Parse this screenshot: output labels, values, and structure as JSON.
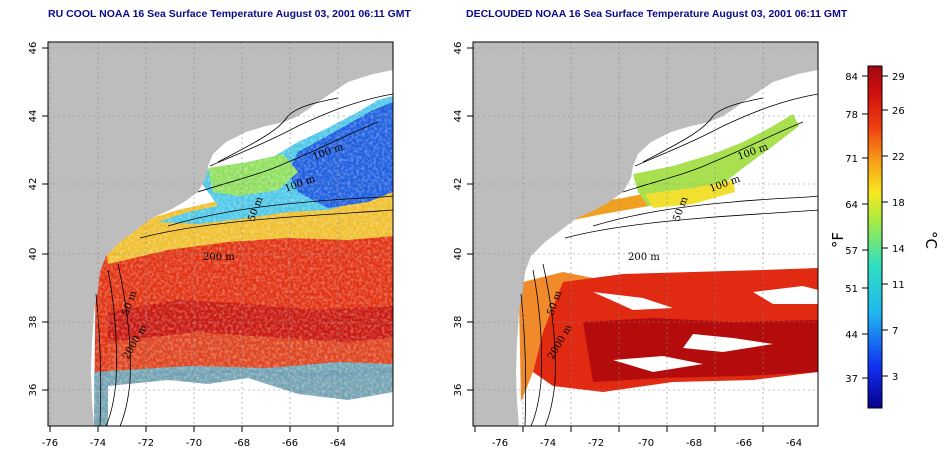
{
  "panels": [
    {
      "title": "RU COOL NOAA 16 Sea Surface Temperature August 03, 2001 06:11 GMT"
    },
    {
      "title": "DECLOUDED NOAA 16 Sea Surface Temperature August 03, 2001 06:11 GMT"
    }
  ],
  "axes": {
    "lat_ticks": [
      "36",
      "38",
      "40",
      "42",
      "44",
      "46"
    ],
    "lon_ticks": [
      "-76",
      "-74",
      "-72",
      "-70",
      "-68",
      "-66",
      "-64"
    ]
  },
  "isobaths": {
    "m100": "100 m",
    "m50": "50 m",
    "m200": "200 m",
    "m2000": "2000 m"
  },
  "colorbar": {
    "f_label": "°F",
    "c_label": "°C",
    "f_ticks": [
      "84",
      "78",
      "71",
      "64",
      "57",
      "51",
      "44",
      "37"
    ],
    "c_ticks": [
      "29",
      "26",
      "22",
      "18",
      "14",
      "11",
      "7",
      "3"
    ]
  },
  "colors": {
    "land": "#bdbdbd",
    "warm": "#d0180c",
    "hot": "#b50c0c",
    "mid": "#f0a020",
    "cool": "#38c0e0",
    "cold": "#1a4fd6",
    "title": "#0a0a8c"
  }
}
